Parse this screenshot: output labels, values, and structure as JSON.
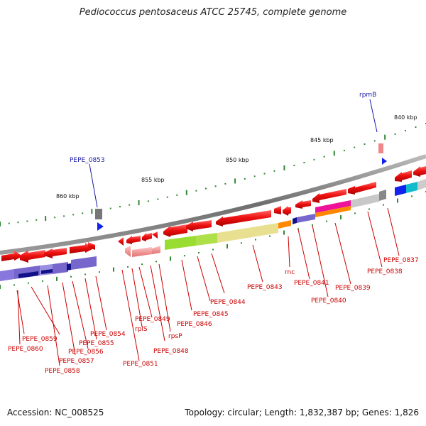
{
  "title": "Pediococcus pentosaceus ATCC 25745, complete genome",
  "footer": {
    "accession": "Accession: NC_008525",
    "stats": "Topology: circular; Length: 1,832,387 bp; Genes: 1,826"
  },
  "scale_labels": [
    "860 kbp",
    "855 kbp",
    "850 kbp",
    "845 kbp",
    "840 kbp"
  ],
  "labels": {
    "PEPE_0853": "PEPE_0853",
    "rpmB": "rpmB",
    "PEPE_0859": "PEPE_0859",
    "PEPE_0860": "PEPE_0860",
    "PEPE_0858": "PEPE_0858",
    "PEPE_0857": "PEPE_0857",
    "PEPE_0856": "PEPE_0856",
    "PEPE_0855": "PEPE_0855",
    "PEPE_0854": "PEPE_0854",
    "PEPE_0851": "PEPE_0851",
    "rplS": "rplS",
    "PEPE_0849": "PEPE_0849",
    "rpsP": "rpsP",
    "PEPE_0848": "PEPE_0848",
    "PEPE_0846": "PEPE_0846",
    "PEPE_0845": "PEPE_0845",
    "PEPE_0844": "PEPE_0844",
    "PEPE_0843": "PEPE_0843",
    "rnc": "rnc",
    "PEPE_0841": "PEPE_0841",
    "PEPE_0840": "PEPE_0840",
    "PEPE_0839": "PEPE_0839",
    "PEPE_0838": "PEPE_0838",
    "PEPE_0837": "PEPE_0837"
  },
  "colors": {
    "gene": "#ee1111",
    "gene_pale": "#ee8888",
    "backbone": "#777777",
    "label_red": "#cc0000",
    "label_blue": "#1a1aa6",
    "purple": "#7766cc",
    "navy": "#111188",
    "lime": "#99dd33",
    "khaki": "#e8e090",
    "orange": "#ff8800",
    "magenta": "#ee1199",
    "grey": "#bbbbbb",
    "cyan": "#11bbcc",
    "blue": "#1122ee",
    "tick": "#338833"
  }
}
